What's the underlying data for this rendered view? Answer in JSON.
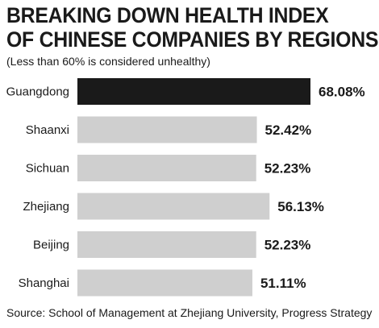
{
  "chart_data": {
    "type": "bar",
    "orientation": "horizontal",
    "title": "BREAKING DOWN HEALTH INDEX OF CHINESE COMPANIES BY REGIONS",
    "title_lines": [
      "BREAKING DOWN HEALTH INDEX",
      "OF CHINESE COMPANIES BY REGIONS"
    ],
    "subtitle": "(Less than 60% is considered unhealthy)",
    "categories": [
      "Guangdong",
      "Shaanxi",
      "Sichuan",
      "Zhejiang",
      "Beijing",
      "Shanghai"
    ],
    "values": [
      68.08,
      52.42,
      52.23,
      56.13,
      52.23,
      51.11
    ],
    "value_labels": [
      "68.08%",
      "52.42%",
      "52.23%",
      "56.13%",
      "52.23%",
      "51.11%"
    ],
    "xlim": [
      0,
      70
    ],
    "grid": false,
    "legend": "none",
    "highlight_color": "#1a1a1a",
    "bar_color": "#cfcfcf",
    "highlight_index": 0,
    "source": "Source: School of Management at Zhejiang University, Progress Strategy"
  }
}
